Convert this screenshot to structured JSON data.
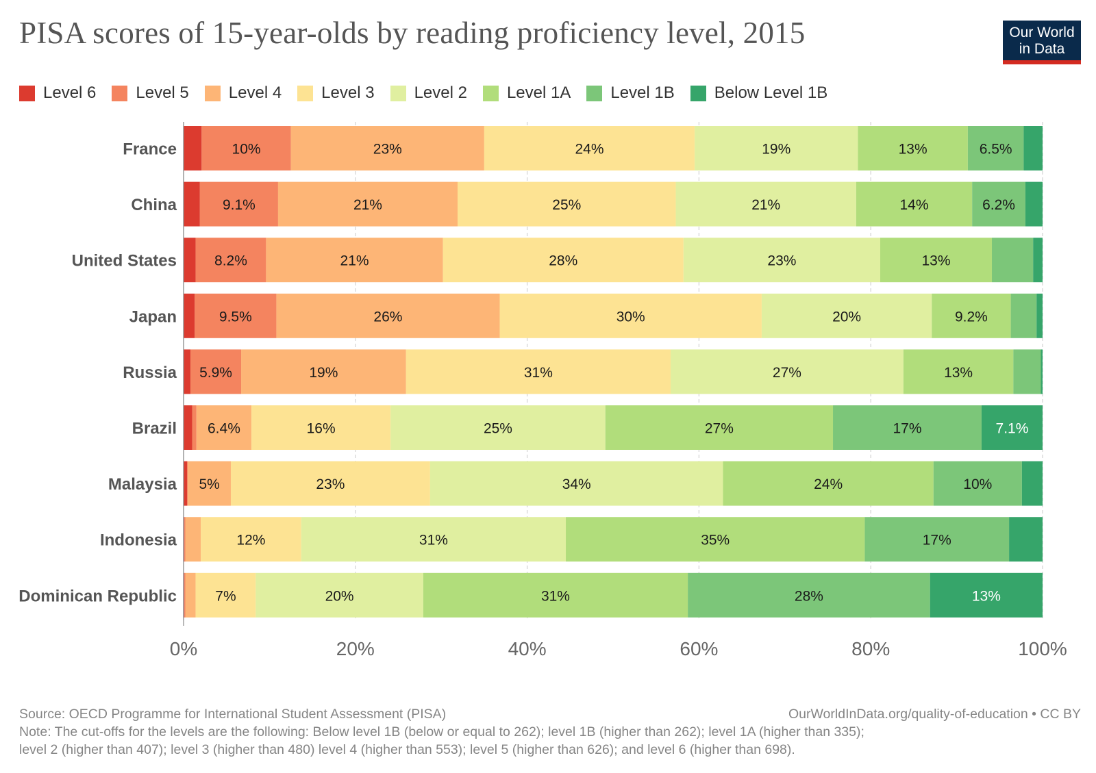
{
  "title": "PISA scores of 15-year-olds by reading proficiency level, 2015",
  "logo": {
    "line1": "Our World",
    "line2": "in Data"
  },
  "footer": {
    "source": "Source: OECD Programme for International Student Assessment (PISA)",
    "url": "OurWorldInData.org/quality-of-education • CC BY",
    "note_line1": "Note: The cut-offs for the levels are the following: Below level 1B (below or equal to 262); level 1B (higher than 262); level 1A (higher than 335);",
    "note_line2": "level 2 (higher than 407); level 3 (higher than 480) level 4 (higher than 553); level 5 (higher than 626); and level 6 (higher than 698)."
  },
  "chart_data": {
    "type": "bar",
    "orientation": "horizontal",
    "stacked": true,
    "x_axis": {
      "range": [
        0,
        100
      ],
      "ticks": [
        0,
        20,
        40,
        60,
        80,
        100
      ],
      "tick_labels": [
        "0%",
        "20%",
        "40%",
        "60%",
        "80%",
        "100%"
      ],
      "grid": true
    },
    "legend_position": "top-left",
    "categories": [
      "France",
      "China",
      "United States",
      "Japan",
      "Russia",
      "Brazil",
      "Malaysia",
      "Indonesia",
      "Dominican Republic"
    ],
    "series": [
      {
        "name": "Level 6",
        "color": "#dc3b2f",
        "values": [
          2.1,
          1.9,
          1.4,
          1.3,
          0.8,
          1.0,
          0.4,
          0.1,
          0.1
        ]
      },
      {
        "name": "Level 5",
        "color": "#f4845f",
        "values": [
          10.4,
          9.1,
          8.2,
          9.5,
          5.9,
          0.5,
          0.1,
          0.1,
          0.1
        ]
      },
      {
        "name": "Level 4",
        "color": "#fdb576",
        "values": [
          22.5,
          20.9,
          20.6,
          26.0,
          19.2,
          6.4,
          5.0,
          1.8,
          1.2
        ]
      },
      {
        "name": "Level 3",
        "color": "#fde393",
        "values": [
          24.5,
          25.4,
          28.0,
          30.5,
          30.8,
          16.2,
          23.2,
          11.7,
          7.0
        ]
      },
      {
        "name": "Level 2",
        "color": "#e0efa0",
        "values": [
          19.0,
          21.0,
          22.9,
          19.8,
          27.1,
          25.0,
          34.1,
          30.8,
          19.5
        ]
      },
      {
        "name": "Level 1A",
        "color": "#b1dd7b",
        "values": [
          12.8,
          13.5,
          13.0,
          9.2,
          12.8,
          26.5,
          24.5,
          34.8,
          30.8
        ]
      },
      {
        "name": "Level 1B",
        "color": "#7cc679",
        "values": [
          6.5,
          6.2,
          4.8,
          3.0,
          3.2,
          17.3,
          10.3,
          16.8,
          28.2
        ]
      },
      {
        "name": "Below Level 1B",
        "color": "#36a56a",
        "values": [
          2.2,
          2.0,
          1.1,
          0.7,
          0.2,
          7.1,
          2.4,
          3.9,
          13.1
        ]
      }
    ],
    "data_labels": [
      [
        "",
        "10%",
        "23%",
        "24%",
        "19%",
        "13%",
        "6.5%",
        ""
      ],
      [
        "",
        "9.1%",
        "21%",
        "25%",
        "21%",
        "14%",
        "6.2%",
        ""
      ],
      [
        "",
        "8.2%",
        "21%",
        "28%",
        "23%",
        "13%",
        "",
        ""
      ],
      [
        "",
        "9.5%",
        "26%",
        "30%",
        "20%",
        "9.2%",
        "",
        ""
      ],
      [
        "",
        "5.9%",
        "19%",
        "31%",
        "27%",
        "13%",
        "",
        ""
      ],
      [
        "",
        "",
        "6.4%",
        "16%",
        "25%",
        "27%",
        "17%",
        "7.1%"
      ],
      [
        "",
        "",
        "5%",
        "23%",
        "34%",
        "24%",
        "10%",
        ""
      ],
      [
        "",
        "",
        "",
        "12%",
        "31%",
        "35%",
        "17%",
        ""
      ],
      [
        "",
        "",
        "",
        "7%",
        "20%",
        "31%",
        "28%",
        "13%"
      ]
    ]
  }
}
